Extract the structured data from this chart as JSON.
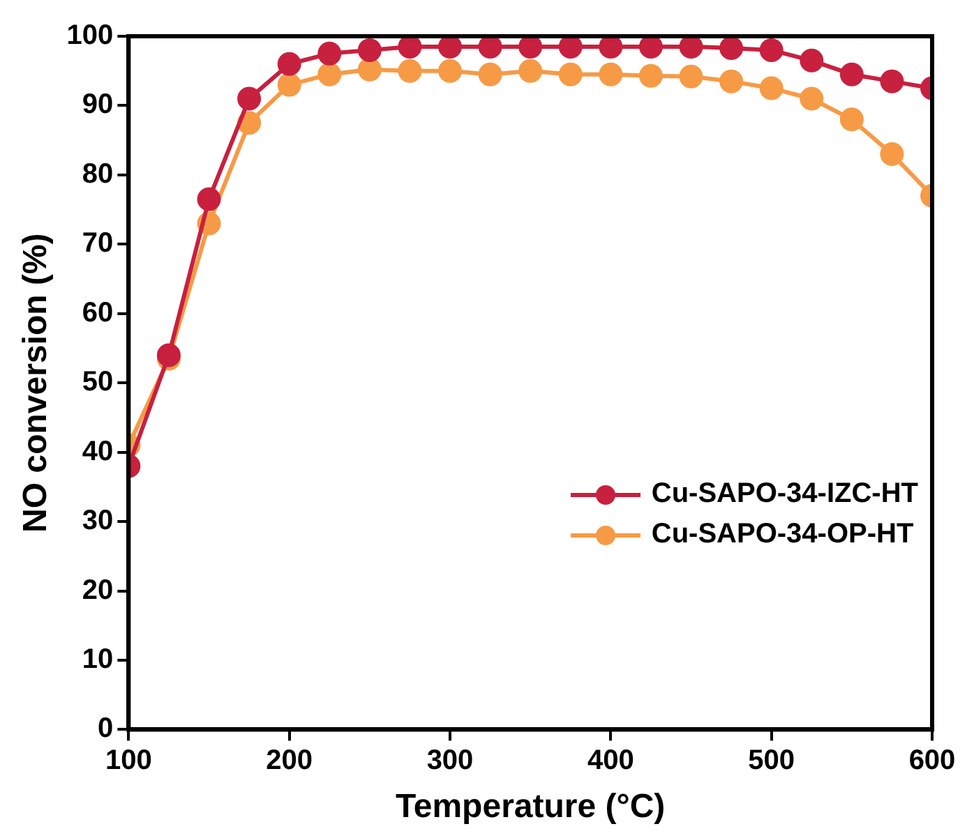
{
  "chart_data": {
    "type": "line",
    "xlabel": "Temperature (°C)",
    "ylabel": "NO conversion (%)",
    "x": [
      100,
      125,
      150,
      175,
      200,
      225,
      250,
      275,
      300,
      325,
      350,
      375,
      400,
      425,
      450,
      475,
      500,
      525,
      550,
      575,
      600
    ],
    "xlim": [
      100,
      600
    ],
    "xticks": [
      100,
      200,
      300,
      400,
      500,
      600
    ],
    "ylim": [
      0,
      100
    ],
    "yticks": [
      0,
      10,
      20,
      30,
      40,
      50,
      60,
      70,
      80,
      90,
      100
    ],
    "series": [
      {
        "name": "Cu-SAPO-34-IZC-HT",
        "color": "#c8203f",
        "values": [
          38,
          54,
          76.5,
          91,
          96,
          97.5,
          98,
          98.5,
          98.5,
          98.5,
          98.5,
          98.5,
          98.5,
          98.5,
          98.5,
          98.3,
          98,
          96.5,
          94.5,
          93.5,
          92.5
        ]
      },
      {
        "name": "Cu-SAPO-34-OP-HT",
        "color": "#f79a45",
        "values": [
          41,
          53.5,
          73,
          87.5,
          93,
          94.5,
          95.2,
          95,
          95,
          94.5,
          95,
          94.5,
          94.5,
          94.3,
          94.2,
          93.5,
          92.5,
          91,
          88,
          83,
          77
        ]
      }
    ],
    "legend": "right",
    "marker": "circle",
    "grid": false
  }
}
